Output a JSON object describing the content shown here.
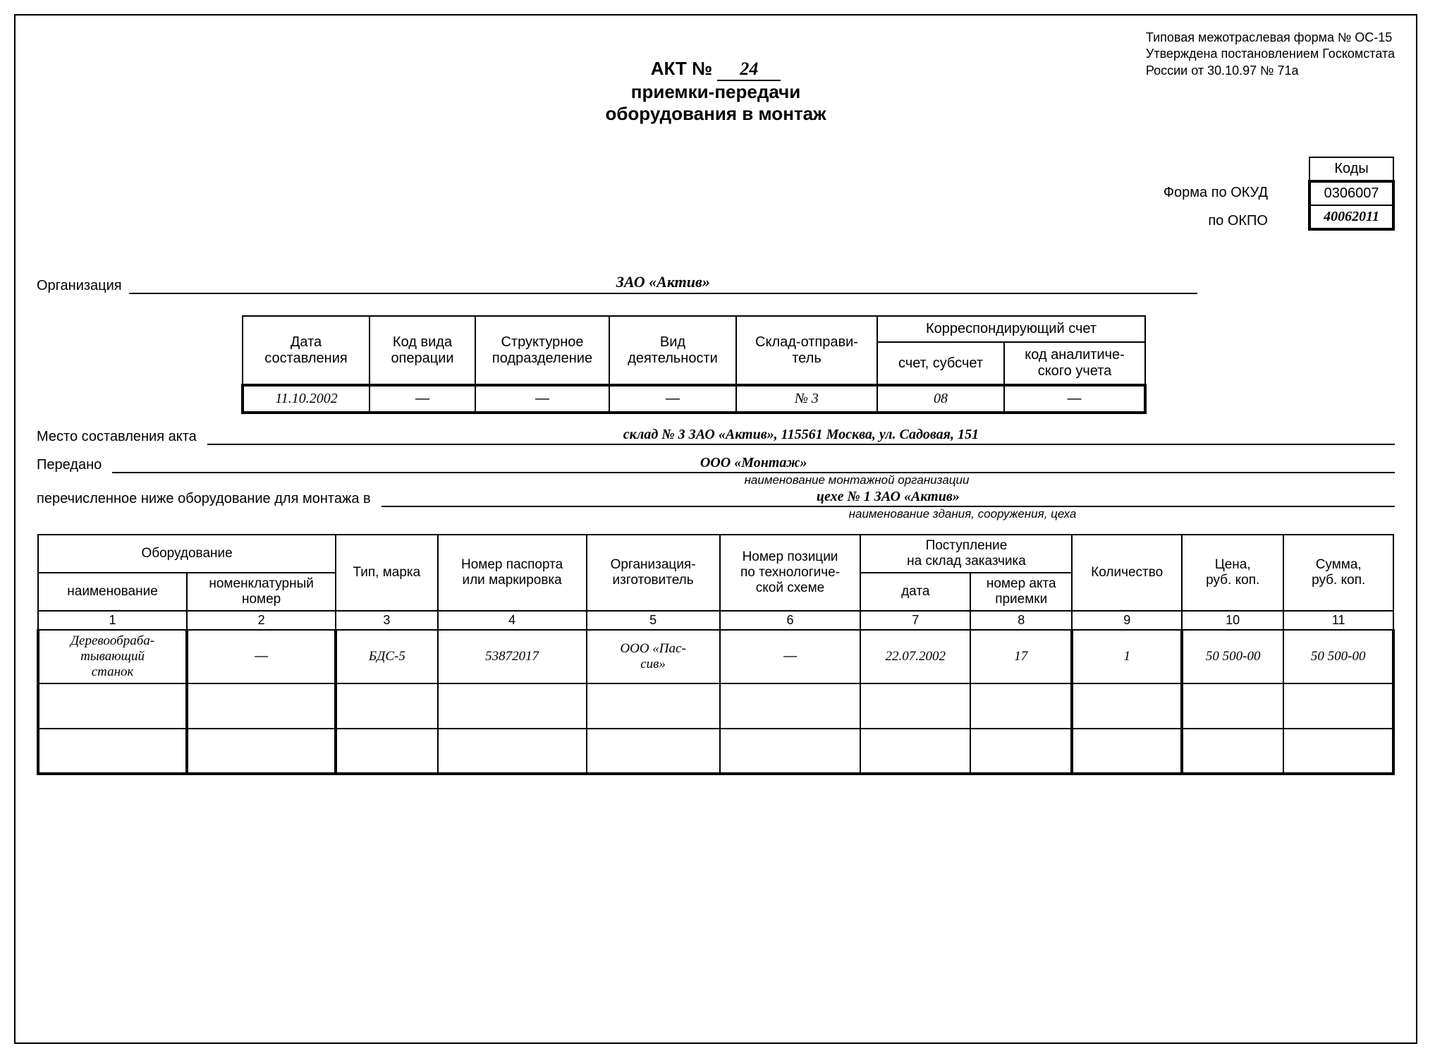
{
  "topNote": {
    "line1": "Типовая межотраслевая форма № ОС-15",
    "line2": "Утверждена постановлением Госкомстата",
    "line3": "России от 30.10.97 № 71а"
  },
  "title": {
    "prefix": "АКТ №",
    "number": "24",
    "line2": "приемки-передачи",
    "line3": "оборудования в монтаж"
  },
  "codes": {
    "header": "Коды",
    "okud": "0306007",
    "okpo": "40062011",
    "okud_label": "Форма по ОКУД",
    "okpo_label": "по ОКПО"
  },
  "org": {
    "label": "Организация",
    "value": "ЗАО «Актив»"
  },
  "headerTable": {
    "cols": [
      "Дата\nсоставления",
      "Код вида\nоперации",
      "Структурное\nподразделение",
      "Вид\nдеятельности",
      "Склад-отправи-\nтель"
    ],
    "corrHeader": "Корреспондирующий счет",
    "corrSub": [
      "счет, субсчет",
      "код аналитиче-\nского учета"
    ],
    "values": [
      "11.10.2002",
      "—",
      "—",
      "—",
      "№ 3",
      "08",
      "—"
    ]
  },
  "place": {
    "label": "Место составления акта",
    "value": "склад № 3 ЗАО «Актив», 115561 Москва, ул. Садовая, 151"
  },
  "transferred": {
    "label": "Передано",
    "value": "ООО «Монтаж»",
    "sub": "наименование монтажной организации"
  },
  "listed": {
    "label": "перечисленное ниже оборудование для монтажа в",
    "value": "цехе № 1 ЗАО «Актив»",
    "sub": "наименование здания, сооружения, цеха"
  },
  "mainTable": {
    "headers": {
      "equipment": "Оборудование",
      "name": "наименование",
      "nomNum": "номенклатурный\nномер",
      "typeBrand": "Тип, марка",
      "passport": "Номер паспорта\nили маркировка",
      "manufacturer": "Организация-\nизготовитель",
      "techPos": "Номер позиции\nпо технологиче-\nской схеме",
      "receipt": "Поступление\nна склад заказчика",
      "date": "дата",
      "actNum": "номер акта\nприемки",
      "qty": "Количество",
      "price": "Цена,\nруб. коп.",
      "sum": "Сумма,\nруб. коп."
    },
    "colNums": [
      "1",
      "2",
      "3",
      "4",
      "5",
      "6",
      "7",
      "8",
      "9",
      "10",
      "11"
    ],
    "rows": [
      [
        "Деревообраба-\nтывающий\nстанок",
        "—",
        "БДС-5",
        "53872017",
        "ООО «Пас-\nсив»",
        "—",
        "22.07.2002",
        "17",
        "1",
        "50 500-00",
        "50 500-00"
      ],
      [
        "",
        "",
        "",
        "",
        "",
        "",
        "",
        "",
        "",
        "",
        ""
      ],
      [
        "",
        "",
        "",
        "",
        "",
        "",
        "",
        "",
        "",
        "",
        ""
      ]
    ]
  }
}
